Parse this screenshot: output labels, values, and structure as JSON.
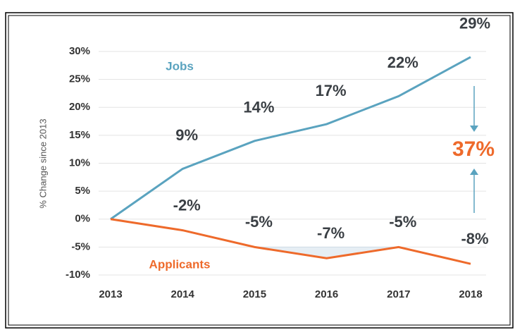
{
  "chart_data": {
    "type": "line",
    "y_label": "% Change since 2013",
    "categories": [
      "2013",
      "2014",
      "2015",
      "2016",
      "2017",
      "2018"
    ],
    "series": [
      {
        "name": "Jobs",
        "color": "#5aa3bf",
        "values": [
          0,
          9,
          14,
          17,
          22,
          29
        ],
        "value_labels": [
          null,
          "9%",
          "14%",
          "17%",
          "22%",
          "29%"
        ]
      },
      {
        "name": "Applicants",
        "color": "#ee6a2b",
        "values": [
          0,
          -2,
          -5,
          -7,
          -5,
          -8
        ],
        "value_labels": [
          null,
          "-2%",
          "-5%",
          "-7%",
          "-5%",
          "-8%"
        ]
      }
    ],
    "gap_annotation": {
      "text": "37%",
      "color": "#ee6a2b"
    },
    "ylim": [
      -10,
      30
    ],
    "yticks": [
      {
        "value": -10,
        "label": "-10%"
      },
      {
        "value": -5,
        "label": "-5%"
      },
      {
        "value": 0,
        "label": "0%"
      },
      {
        "value": 5,
        "label": "5%"
      },
      {
        "value": 10,
        "label": "10%"
      },
      {
        "value": 15,
        "label": "15%"
      },
      {
        "value": 20,
        "label": "20%"
      },
      {
        "value": 25,
        "label": "25%"
      },
      {
        "value": 30,
        "label": "30%"
      }
    ],
    "grid": true
  }
}
